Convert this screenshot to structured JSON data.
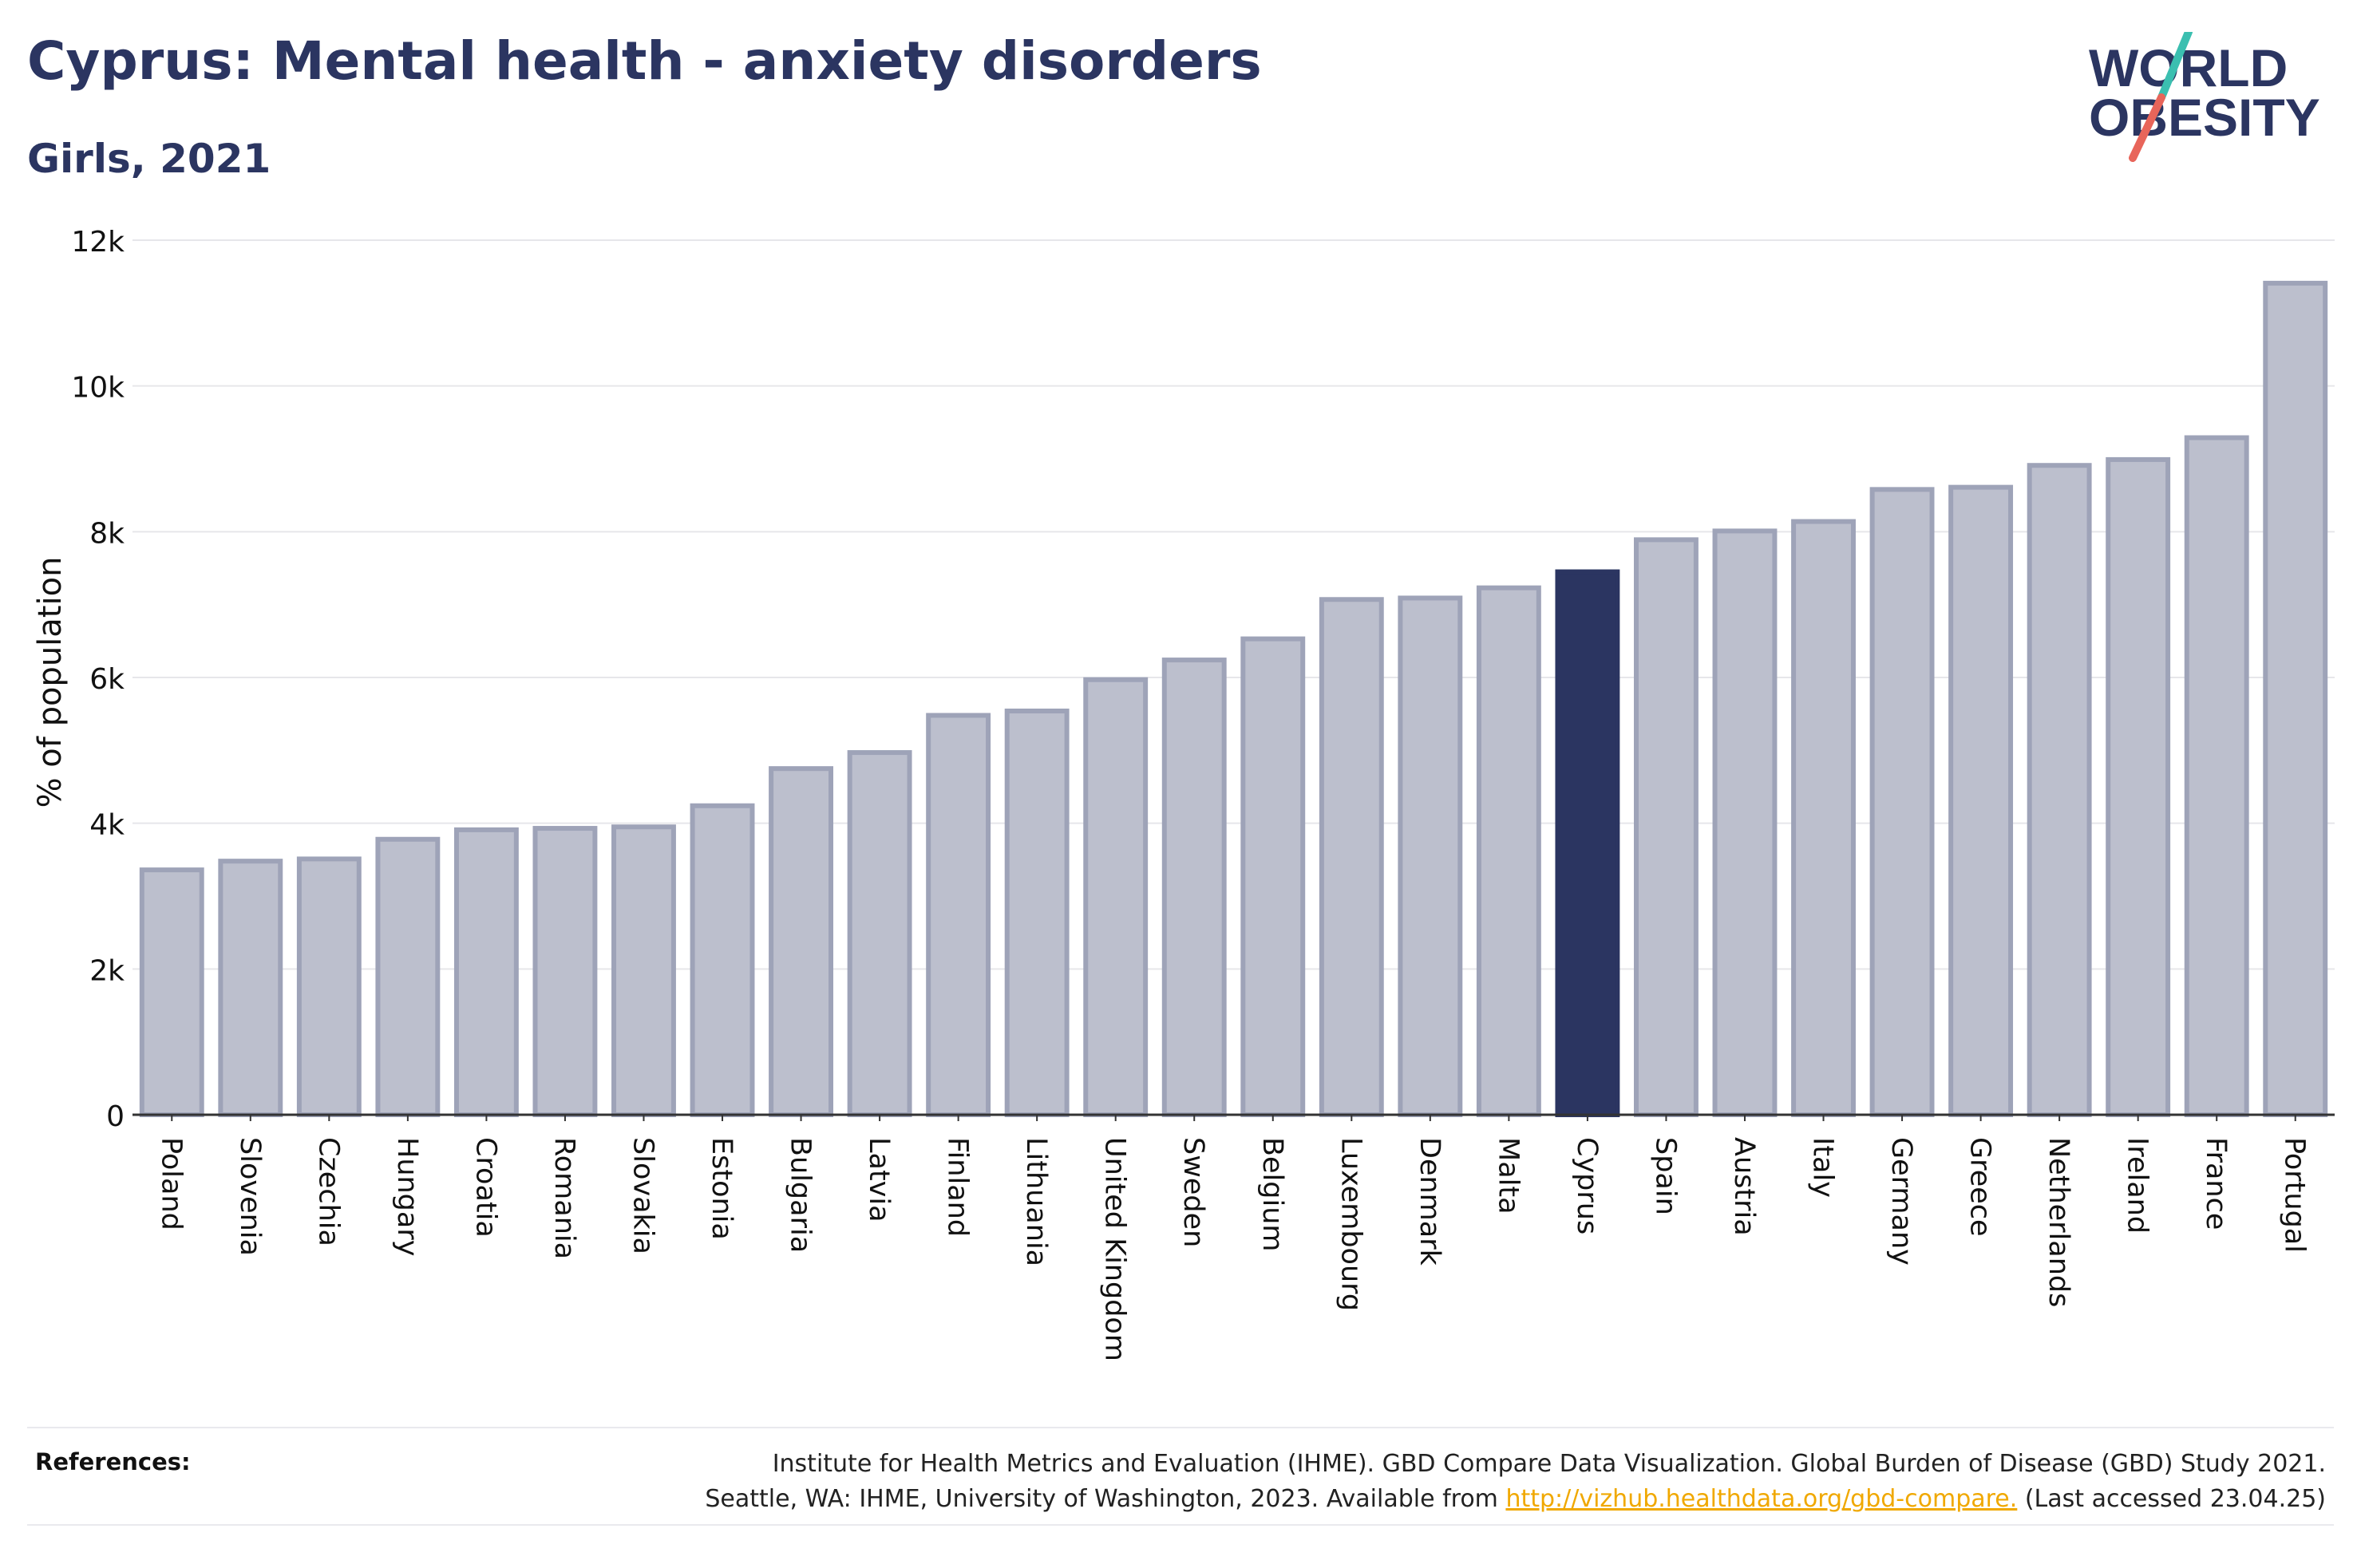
{
  "header": {
    "title": "Cyprus: Mental health - anxiety disorders",
    "subtitle": "Girls, 2021"
  },
  "logo": {
    "line1": "WORLD",
    "line2": "OBESITY",
    "accent_teal": "#3bbfb0",
    "accent_coral": "#e8655a",
    "text_color": "#2b3561"
  },
  "colors": {
    "highlight_bar": "#2b3561",
    "other_bar_fill": "#bcbfcd",
    "other_bar_stroke": "#9ea3b8"
  },
  "chart_data": {
    "type": "bar",
    "title": "Cyprus: Mental health - anxiety disorders",
    "subtitle": "Girls, 2021",
    "xlabel": "",
    "ylabel": "% of population",
    "ylim": [
      0,
      12000
    ],
    "yticks": [
      0,
      2000,
      4000,
      6000,
      8000,
      10000,
      12000
    ],
    "ytick_labels": [
      "0",
      "2k",
      "4k",
      "6k",
      "8k",
      "10k",
      "12k"
    ],
    "grid": true,
    "highlight": "Cyprus",
    "categories": [
      "Poland",
      "Slovenia",
      "Czechia",
      "Hungary",
      "Croatia",
      "Romania",
      "Slovakia",
      "Estonia",
      "Bulgaria",
      "Latvia",
      "Finland",
      "Lithuania",
      "United Kingdom",
      "Sweden",
      "Belgium",
      "Luxembourg",
      "Denmark",
      "Malta",
      "Cyprus",
      "Spain",
      "Austria",
      "Italy",
      "Germany",
      "Greece",
      "Netherlands",
      "Ireland",
      "France",
      "Portugal"
    ],
    "values": [
      3360,
      3480,
      3510,
      3780,
      3910,
      3930,
      3950,
      4240,
      4750,
      4970,
      5480,
      5540,
      5970,
      6240,
      6530,
      7070,
      7090,
      7230,
      7450,
      7890,
      8010,
      8140,
      8580,
      8610,
      8910,
      8990,
      9290,
      11410
    ]
  },
  "references": {
    "label": "References:",
    "line1": "Institute for Health Metrics and Evaluation (IHME). GBD Compare Data Visualization. Global Burden of Disease (GBD) Study 2021.",
    "line2_prefix": "Seattle, WA: IHME, University of Washington, 2023. Available from ",
    "link_text": "http://vizhub.healthdata.org/gbd-compare.",
    "line2_suffix": " (Last accessed 23.04.25)"
  }
}
